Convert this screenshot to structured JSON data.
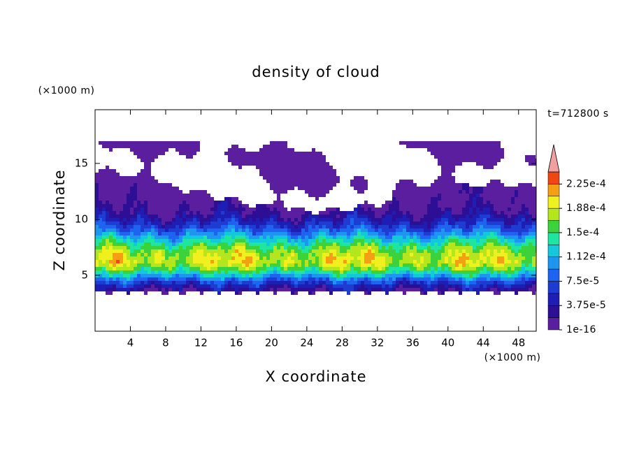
{
  "chart_data": {
    "type": "contour",
    "title": "density of cloud",
    "xlabel": "X coordinate",
    "ylabel": "Z coordinate",
    "x_unit": "(×1000 m)",
    "y_unit": "(×1000 m)",
    "annotation": "t=712800 s",
    "xlim": [
      0,
      50
    ],
    "xticks": [
      4,
      8,
      12,
      16,
      20,
      24,
      28,
      32,
      36,
      40,
      44,
      48
    ],
    "ylim": [
      0,
      19.8
    ],
    "yticks": [
      5,
      10,
      15
    ],
    "colorbar": {
      "lim": [
        1e-16,
        0.00024375
      ],
      "ticks": [
        {
          "value": 1e-16,
          "label": "1e-16"
        },
        {
          "value": 3.75e-05,
          "label": "3.75e-5"
        },
        {
          "value": 7.5e-05,
          "label": "7.5e-5"
        },
        {
          "value": 0.0001125,
          "label": "1.12e-4"
        },
        {
          "value": 0.00015,
          "label": "1.5e-4"
        },
        {
          "value": 0.0001875,
          "label": "1.88e-4"
        },
        {
          "value": 0.000225,
          "label": "2.25e-4"
        }
      ],
      "colors": [
        "#5a1e9e",
        "#2d0f96",
        "#1e1eb4",
        "#1e3cd2",
        "#1e64f0",
        "#1e96f0",
        "#14c8dc",
        "#1ee6a0",
        "#3cd23c",
        "#b4e61e",
        "#f0f01e",
        "#f5a014",
        "#f04614"
      ],
      "extend_color": "#f0a0a0"
    }
  }
}
